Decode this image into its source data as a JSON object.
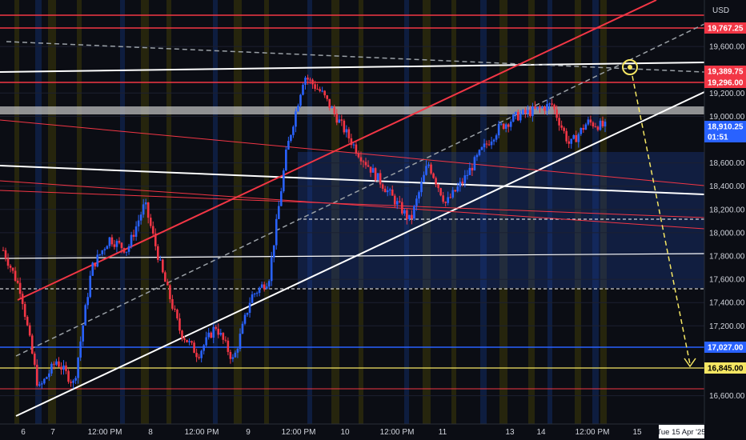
{
  "currency_label": "USD",
  "y_axis_ticks": [
    "19,600.00",
    "19,200.00",
    "19,000.00",
    "18,600.00",
    "18,400.00",
    "18,200.00",
    "18,000.00",
    "17,800.00",
    "17,600.00",
    "17,400.00",
    "17,200.00",
    "16,600.00"
  ],
  "x_axis_ticks": [
    "6",
    "7",
    "12:00 PM",
    "8",
    "12:00 PM",
    "9",
    "12:00 PM",
    "10",
    "12:00 PM",
    "11",
    "13",
    "14",
    "12:00 PM",
    "15"
  ],
  "crosshair_date": "Tue 15 Apr '25",
  "price_tags": [
    {
      "label": "19,767.25",
      "bg": "#f23645",
      "fg": "#ffffff"
    },
    {
      "label": "19,389.75",
      "bg": "#f23645",
      "fg": "#ffffff"
    },
    {
      "label": "19,296.00",
      "bg": "#f23645",
      "fg": "#ffffff"
    },
    {
      "label": "18,910.25",
      "bg": "#2962ff",
      "fg": "#ffffff"
    },
    {
      "label": "01:51",
      "bg": "#2962ff",
      "fg": "#ffffff"
    },
    {
      "label": "17,027.00",
      "bg": "#2962ff",
      "fg": "#ffffff"
    },
    {
      "label": "16,845.00",
      "bg": "#f5e663",
      "fg": "#000000"
    }
  ],
  "colors": {
    "background": "#0b0d14",
    "up_candle": "#2962ff",
    "down_candle": "#f23645",
    "support_line": "#ffffff",
    "resistance_line": "#f23645",
    "projection": "#f5e663"
  },
  "chart_data": {
    "type": "candlestick",
    "y_axis_unit": "USD",
    "ylim": [
      16400,
      19950
    ],
    "x_categories": [
      "6",
      "7",
      "8",
      "9",
      "10",
      "11",
      "13",
      "14",
      "15"
    ],
    "last_price": 18910.25,
    "countdown": "01:51",
    "horizontal_levels": [
      19767.25,
      19389.75,
      19296.0,
      17027.0,
      16845.0
    ],
    "projected_target": 16845.0,
    "price_path": [
      [
        "6",
        17850
      ],
      [
        "6",
        17500
      ],
      [
        "7",
        16650
      ],
      [
        "7",
        16900
      ],
      [
        "7",
        16700
      ],
      [
        "7",
        17700
      ],
      [
        "8",
        17950
      ],
      [
        "8",
        17850
      ],
      [
        "8",
        18250
      ],
      [
        "8",
        17650
      ],
      [
        "8",
        17150
      ],
      [
        "8",
        16950
      ],
      [
        "9",
        17200
      ],
      [
        "9",
        16900
      ],
      [
        "9",
        17450
      ],
      [
        "9",
        17600
      ],
      [
        "9",
        18700
      ],
      [
        "10",
        19350
      ],
      [
        "10",
        19200
      ],
      [
        "10",
        18950
      ],
      [
        "10",
        18700
      ],
      [
        "10",
        18500
      ],
      [
        "10",
        18300
      ],
      [
        "11",
        18100
      ],
      [
        "11",
        18600
      ],
      [
        "11",
        18250
      ],
      [
        "11",
        18450
      ],
      [
        "11",
        18700
      ],
      [
        "13",
        18900
      ],
      [
        "13",
        19000
      ],
      [
        "14",
        19050
      ],
      [
        "14",
        19100
      ],
      [
        "14",
        18750
      ],
      [
        "14",
        18950
      ],
      [
        "14",
        18910
      ]
    ]
  }
}
